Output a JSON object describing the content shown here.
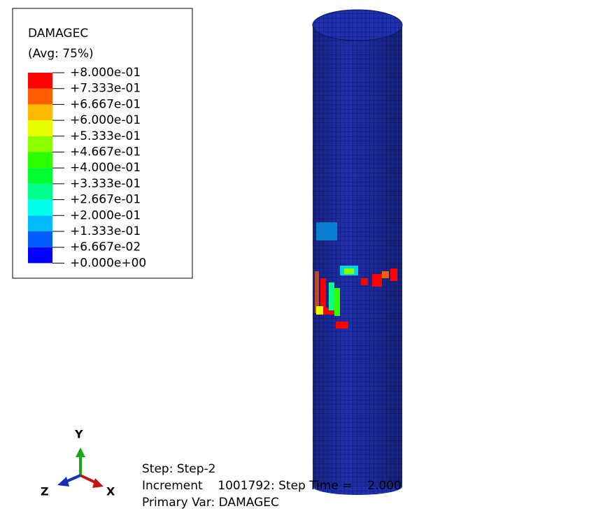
{
  "legend": {
    "title": "DAMAGEC",
    "subtitle": "(Avg: 75%)",
    "labels": [
      "+8.000e-01",
      "+7.333e-01",
      "+6.667e-01",
      "+6.000e-01",
      "+5.333e-01",
      "+4.667e-01",
      "+4.000e-01",
      "+3.333e-01",
      "+2.667e-01",
      "+2.000e-01",
      "+1.333e-01",
      "+6.667e-02",
      "+0.000e+00"
    ],
    "colors": [
      "#ff0000",
      "#ff5d00",
      "#ffb900",
      "#e8ff00",
      "#8bff00",
      "#2eff00",
      "#00ff2e",
      "#00ff8b",
      "#00ffe8",
      "#00b9ff",
      "#005dff",
      "#0000ff"
    ]
  },
  "triad": {
    "y": "Y",
    "z": "Z",
    "x": "X"
  },
  "status": {
    "step": "Step: Step-2",
    "increment": "Increment    1001792: Step Time =    2.000",
    "primary": "Primary Var: DAMAGEC"
  }
}
